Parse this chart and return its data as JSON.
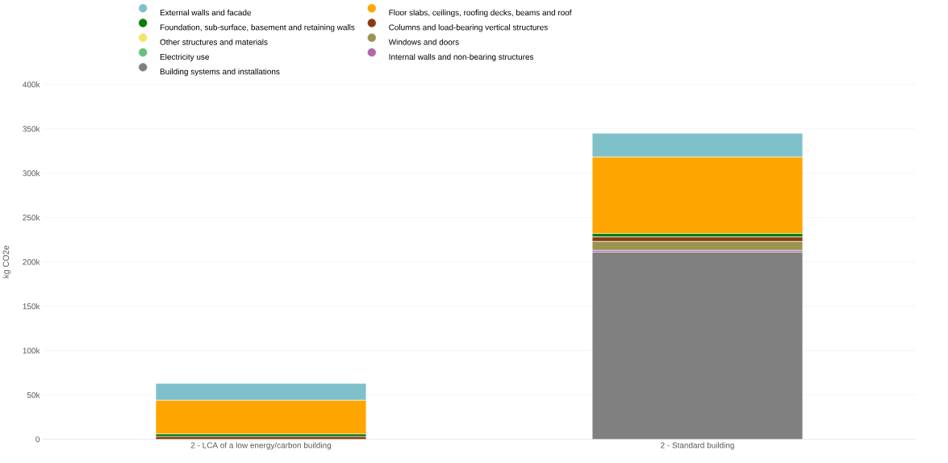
{
  "chart_data": {
    "type": "bar",
    "stacked": true,
    "ylabel": "kg CO2e",
    "categories": [
      "2 - LCA of a low energy/carbon building",
      "2 - Standard building"
    ],
    "series": [
      {
        "name": "Building systems and installations",
        "color": "#808080",
        "values": [
          null,
          211000
        ]
      },
      {
        "name": "Internal walls and non-bearing structures",
        "color": "#b06aa8",
        "values": [
          null,
          2000
        ]
      },
      {
        "name": "Electricity use",
        "color": "#66c07a",
        "values": [
          null,
          null
        ]
      },
      {
        "name": "Windows and doors",
        "color": "#9a9450",
        "values": [
          null,
          10000
        ]
      },
      {
        "name": "Other structures and materials",
        "color": "#f5e36a",
        "values": [
          null,
          null
        ]
      },
      {
        "name": "Columns and load-bearing vertical structures",
        "color": "#8b3a0f",
        "values": [
          3000,
          5000
        ]
      },
      {
        "name": "Foundation, sub-surface, basement and retaining walls",
        "color": "#0a7d0a",
        "values": [
          3000,
          4000
        ]
      },
      {
        "name": "Floor slabs, ceilings, roofing decks, beams and roof",
        "color": "#ffa500",
        "values": [
          38000,
          86000
        ]
      },
      {
        "name": "External walls and facade",
        "color": "#7fc1cb",
        "values": [
          19000,
          27000
        ]
      }
    ],
    "ylim": [
      0,
      400000
    ],
    "yticks": [
      0,
      {
        "value": 50000,
        "label": "50k"
      },
      {
        "value": 100000,
        "label": "100k"
      },
      {
        "value": 150000,
        "label": "150k"
      },
      {
        "value": 200000,
        "label": "200k"
      },
      {
        "value": 250000,
        "label": "250k"
      },
      {
        "value": 300000,
        "label": "300k"
      },
      {
        "value": 350000,
        "label": "350k"
      },
      {
        "value": 400000,
        "label": "400k"
      }
    ],
    "grid": "y",
    "legend": "top"
  }
}
